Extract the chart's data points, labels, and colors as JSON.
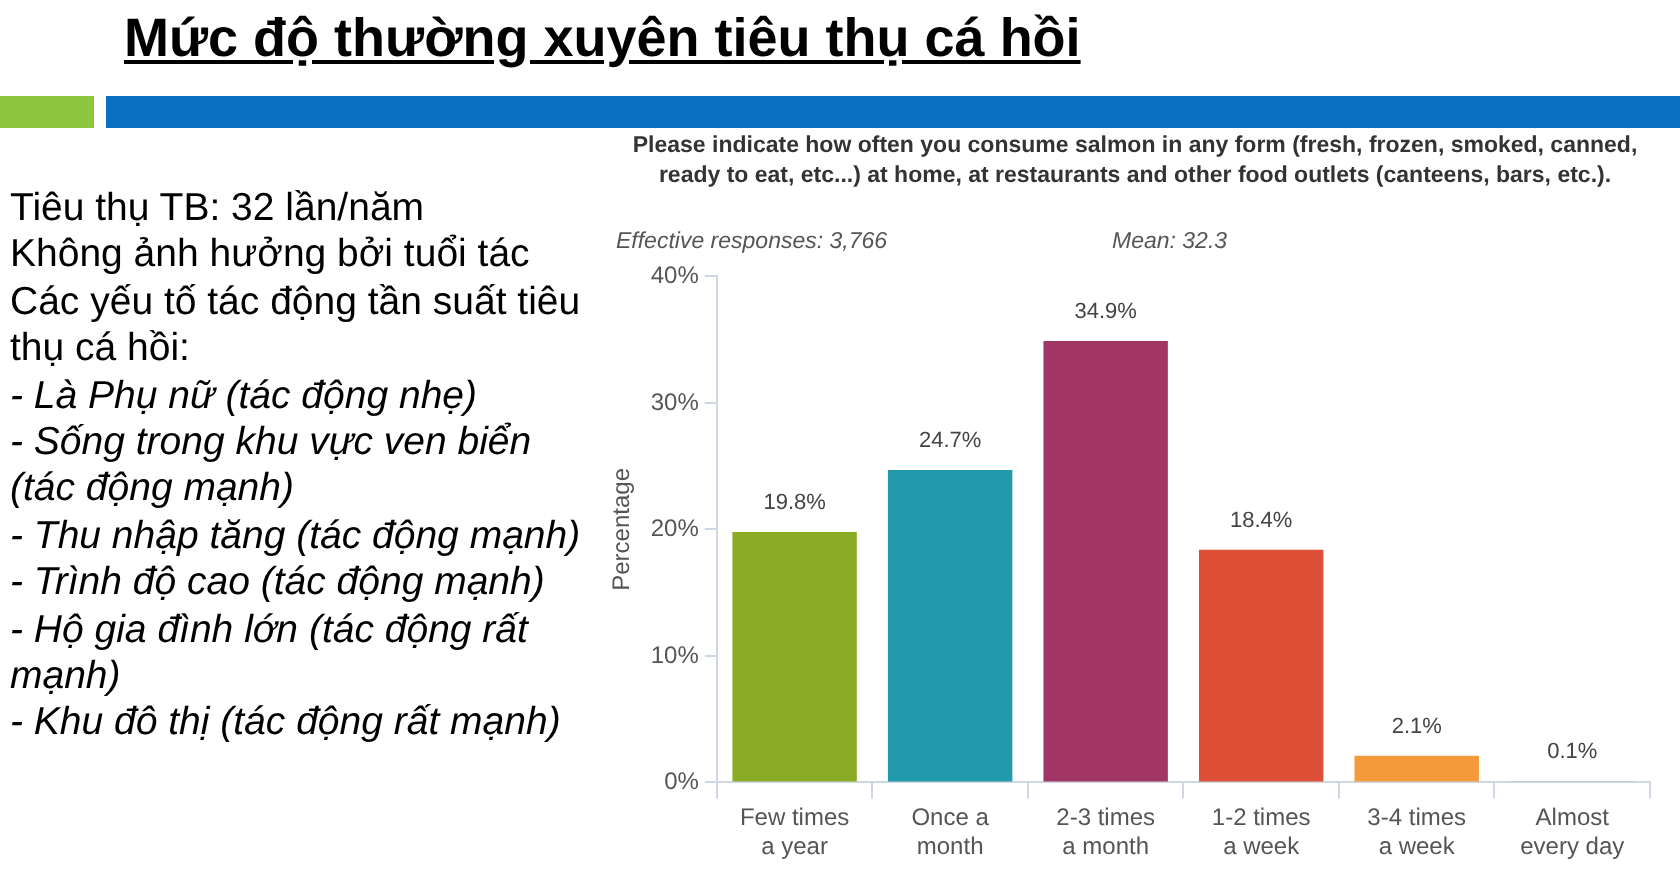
{
  "chart_data": {
    "type": "bar",
    "title": "Mức độ thường xuyên tiêu thụ cá hồi",
    "subtitle": "Please indicate how often you consume salmon in any form (fresh, frozen, smoked, canned, ready to eat, etc...) at home, at restaurants and other food outlets (canteens, bars, etc.).",
    "ylabel": "Percentage",
    "categories": [
      "Few times a year",
      "Once a month",
      "2-3 times a month",
      "1-2 times a week",
      "3-4 times a week",
      "Almost every day"
    ],
    "values": [
      19.8,
      24.7,
      34.9,
      18.4,
      2.1,
      0.1
    ],
    "colors": [
      "#8aab24",
      "#229aab",
      "#a03566",
      "#dd4f36",
      "#f59a3a",
      "#9e9e9e"
    ],
    "value_labels": [
      "19.8%",
      "24.7%",
      "34.9%",
      "18.4%",
      "2.1%",
      "0.1%"
    ],
    "ylim": [
      0,
      40
    ],
    "yticks": [
      {
        "value": 0,
        "label": "0%"
      },
      {
        "value": 10,
        "label": "10%"
      },
      {
        "value": 20,
        "label": "20%"
      },
      {
        "value": 30,
        "label": "30%"
      },
      {
        "value": 40,
        "label": "40%"
      }
    ],
    "grid": false,
    "legend": false,
    "annotations": [
      "Effective responses: 3,766",
      "Mean: 32.3",
      "Tiêu thụ TB: 32 lần/năm",
      "Không ảnh hưởng bởi tuổi tác",
      "Các yếu tố tác động tần suất tiêu thụ cá hồi:",
      "- Là Phụ nữ (tác động nhẹ)",
      "-  Sống trong khu vực ven biển (tác động mạnh)",
      "- Thu nhập tăng (tác động mạnh)",
      "- Trình độ cao (tác động mạnh)",
      "- Hộ gia đình lớn (tác động rất mạnh)",
      "- Khu đô thị (tác động rất mạnh)"
    ]
  }
}
